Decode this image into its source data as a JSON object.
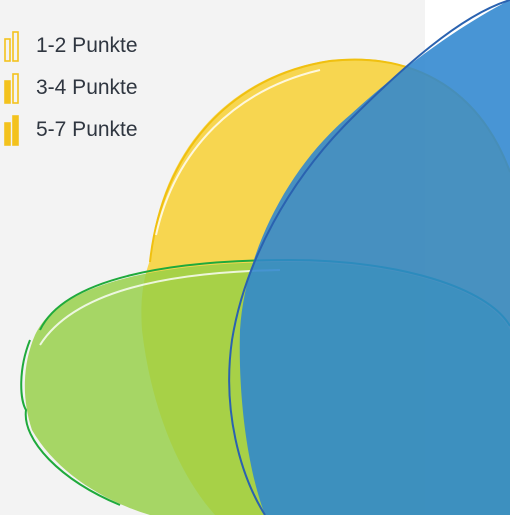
{
  "colors": {
    "panel_background": "#f3f3f3",
    "page_background": "#ffffff",
    "yellow": "#f8cf2c",
    "green": "#95cf45",
    "blue": "#2f86cf",
    "icon_gold": "#f3c21d"
  },
  "legend": {
    "items": [
      {
        "label": "1-2 Punkte",
        "icon": "bar-level-1-icon",
        "level": 1,
        "of": 3
      },
      {
        "label": "3-4 Punkte",
        "icon": "bar-level-2-icon",
        "level": 2,
        "of": 3
      },
      {
        "label": "5-7 Punkte",
        "icon": "bar-level-3-icon",
        "level": 3,
        "of": 3
      }
    ]
  }
}
